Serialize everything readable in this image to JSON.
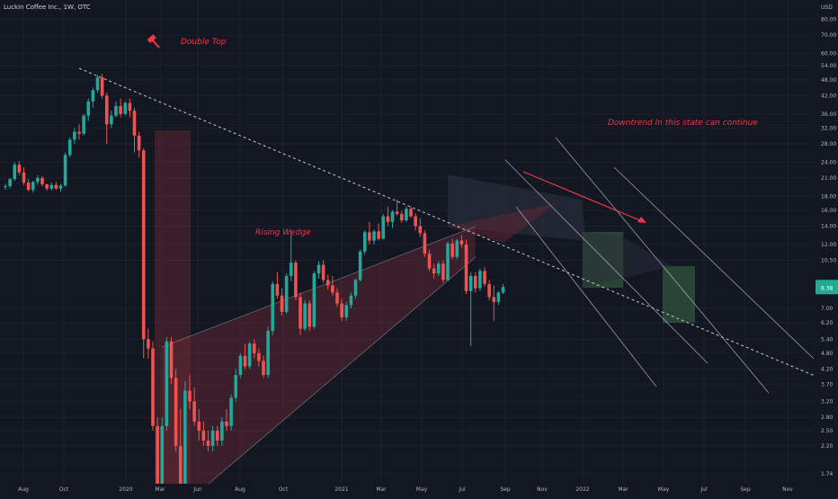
{
  "chart_header": {
    "symbol_title": "Luckin Coffee Inc., 1W, OTC"
  },
  "colors": {
    "background": "#131722",
    "grid": "#1c2030",
    "axis_text": "#b2b5be",
    "up": "#26a69a",
    "down": "#ef5350",
    "annotation": "#f23645",
    "trendline": "#c7c9d1",
    "wedge_fill": "#6b2a35",
    "triangle_fill": "#2a2e39",
    "green_zone": "#3d6b45",
    "last_price_label": "#22ab94"
  },
  "chart_data": {
    "type": "candlestick",
    "xlabel": "",
    "ylabel": "",
    "y_scale": "log",
    "y_unit": "USD",
    "ylim": [
      1.6,
      94
    ],
    "x_ticks": [
      "Aug",
      "Oct",
      "2020",
      "Mar",
      "Jun",
      "Aug",
      "Oct",
      "2021",
      "Mar",
      "May",
      "Jul",
      "Sep",
      "Nov",
      "2022",
      "Mar",
      "May",
      "Jul",
      "Sep",
      "Nov"
    ],
    "y_ticks": [
      "80.00",
      "70.00",
      "60.00",
      "54.00",
      "48.00",
      "42.00",
      "36.00",
      "32.00",
      "28.00",
      "24.00",
      "21.00",
      "18.00",
      "16.00",
      "14.00",
      "12.00",
      "10.50",
      "7.00",
      "6.20",
      "5.40",
      "4.80",
      "4.20",
      "3.70",
      "3.20",
      "2.80",
      "2.50",
      "2.20",
      "1.74"
    ],
    "last_price": "8.38",
    "annotations": [
      {
        "id": "double-top",
        "text": "Double Top"
      },
      {
        "id": "rising-wedge",
        "text": "Rising Wedge"
      },
      {
        "id": "downtrend",
        "text": "Downtrend In this state can continue"
      }
    ],
    "candles": [
      [
        19.5,
        20.0,
        19.0,
        19.6
      ],
      [
        19.6,
        21.0,
        19.2,
        20.8
      ],
      [
        20.8,
        24.0,
        20.5,
        23.5
      ],
      [
        23.5,
        24.2,
        21.5,
        22.0
      ],
      [
        22.0,
        23.0,
        19.8,
        20.2
      ],
      [
        20.2,
        20.8,
        18.8,
        19.0
      ],
      [
        19.0,
        20.5,
        18.6,
        20.3
      ],
      [
        20.3,
        21.5,
        19.8,
        21.0
      ],
      [
        21.0,
        21.4,
        19.6,
        19.9
      ],
      [
        19.9,
        20.0,
        18.9,
        19.2
      ],
      [
        19.2,
        20.2,
        18.9,
        19.8
      ],
      [
        19.8,
        20.3,
        19.0,
        19.2
      ],
      [
        19.2,
        20.0,
        18.7,
        19.7
      ],
      [
        19.7,
        26.0,
        19.5,
        25.5
      ],
      [
        25.5,
        29.5,
        25.0,
        29.0
      ],
      [
        29.0,
        32.0,
        28.0,
        31.0
      ],
      [
        31.0,
        33.0,
        29.0,
        30.5
      ],
      [
        30.5,
        36.0,
        30.0,
        35.5
      ],
      [
        35.5,
        41.0,
        34.0,
        40.0
      ],
      [
        40.0,
        45.0,
        38.0,
        44.0
      ],
      [
        44.0,
        50.0,
        43.0,
        49.0
      ],
      [
        49.0,
        50.5,
        41.0,
        42.0
      ],
      [
        42.0,
        43.0,
        28.0,
        33.0
      ],
      [
        33.0,
        37.0,
        32.0,
        35.5
      ],
      [
        35.5,
        40.0,
        35.0,
        38.5
      ],
      [
        38.5,
        41.0,
        35.0,
        36.0
      ],
      [
        36.0,
        40.0,
        35.5,
        39.5
      ],
      [
        39.5,
        41.0,
        35.0,
        37.0
      ],
      [
        37.0,
        38.0,
        26.0,
        30.0
      ],
      [
        30.0,
        31.0,
        25.0,
        26.5
      ],
      [
        26.5,
        27.0,
        4.6,
        5.4
      ],
      [
        5.4,
        5.9,
        4.6,
        5.0
      ],
      [
        5.0,
        5.3,
        2.5,
        2.6
      ],
      [
        2.6,
        2.8,
        1.4,
        1.5
      ],
      [
        1.5,
        2.8,
        1.4,
        2.6
      ],
      [
        2.6,
        5.5,
        2.5,
        5.3
      ],
      [
        5.3,
        5.5,
        3.7,
        3.9
      ],
      [
        3.9,
        4.2,
        2.1,
        2.2
      ],
      [
        2.2,
        3.0,
        1.4,
        1.6
      ],
      [
        1.6,
        3.8,
        1.5,
        3.5
      ],
      [
        3.5,
        4.0,
        3.0,
        3.2
      ],
      [
        3.2,
        3.6,
        2.6,
        2.7
      ],
      [
        2.7,
        3.0,
        2.3,
        2.5
      ],
      [
        2.5,
        2.7,
        2.2,
        2.3
      ],
      [
        2.3,
        2.5,
        2.1,
        2.2
      ],
      [
        2.2,
        2.6,
        2.1,
        2.5
      ],
      [
        2.5,
        2.6,
        2.2,
        2.3
      ],
      [
        2.3,
        2.8,
        2.2,
        2.7
      ],
      [
        2.7,
        3.0,
        2.5,
        2.6
      ],
      [
        2.6,
        3.4,
        2.5,
        3.3
      ],
      [
        3.3,
        4.2,
        3.2,
        4.0
      ],
      [
        4.0,
        4.8,
        3.9,
        4.7
      ],
      [
        4.7,
        5.2,
        4.2,
        4.3
      ],
      [
        4.3,
        5.3,
        4.2,
        5.2
      ],
      [
        5.2,
        5.4,
        4.6,
        4.8
      ],
      [
        4.8,
        5.0,
        4.3,
        4.5
      ],
      [
        4.5,
        4.7,
        3.9,
        4.0
      ],
      [
        4.0,
        6.0,
        3.9,
        5.8
      ],
      [
        5.8,
        8.8,
        5.6,
        8.6
      ],
      [
        8.6,
        9.5,
        7.6,
        7.8
      ],
      [
        7.8,
        8.3,
        6.6,
        6.8
      ],
      [
        6.8,
        9.4,
        6.7,
        9.2
      ],
      [
        9.2,
        13.5,
        8.8,
        10.3
      ],
      [
        10.3,
        10.5,
        7.5,
        7.7
      ],
      [
        7.7,
        8.0,
        5.6,
        5.9
      ],
      [
        5.9,
        7.5,
        5.8,
        7.3
      ],
      [
        7.3,
        7.5,
        5.8,
        6.0
      ],
      [
        6.0,
        9.6,
        5.9,
        9.4
      ],
      [
        9.4,
        10.4,
        9.0,
        10.1
      ],
      [
        10.1,
        10.5,
        8.7,
        8.9
      ],
      [
        8.9,
        9.3,
        8.2,
        8.5
      ],
      [
        8.5,
        9.2,
        7.8,
        8.0
      ],
      [
        8.0,
        8.3,
        7.1,
        7.3
      ],
      [
        7.3,
        7.6,
        6.3,
        6.5
      ],
      [
        6.5,
        7.4,
        6.3,
        7.2
      ],
      [
        7.2,
        8.0,
        7.0,
        7.8
      ],
      [
        7.8,
        9.0,
        7.6,
        8.9
      ],
      [
        8.9,
        11.5,
        8.8,
        11.3
      ],
      [
        11.3,
        13.5,
        11.0,
        13.3
      ],
      [
        13.3,
        14.5,
        12.0,
        12.4
      ],
      [
        12.4,
        13.6,
        12.0,
        13.4
      ],
      [
        13.4,
        14.3,
        12.4,
        12.6
      ],
      [
        12.6,
        15.5,
        12.5,
        15.2
      ],
      [
        15.2,
        16.5,
        14.0,
        14.5
      ],
      [
        14.5,
        16.0,
        13.8,
        15.8
      ],
      [
        15.8,
        17.5,
        15.3,
        15.5
      ],
      [
        15.5,
        15.9,
        14.4,
        14.7
      ],
      [
        14.7,
        16.5,
        14.5,
        16.2
      ],
      [
        16.2,
        16.5,
        15.0,
        15.2
      ],
      [
        15.2,
        15.6,
        13.5,
        14.0
      ],
      [
        14.0,
        15.0,
        12.8,
        13.2
      ],
      [
        13.2,
        13.5,
        10.8,
        11.1
      ],
      [
        11.1,
        11.5,
        9.6,
        9.8
      ],
      [
        9.8,
        10.2,
        9.0,
        9.4
      ],
      [
        9.4,
        10.4,
        9.2,
        10.2
      ],
      [
        10.2,
        10.5,
        8.7,
        8.9
      ],
      [
        8.9,
        12.3,
        8.8,
        12.1
      ],
      [
        12.1,
        12.6,
        10.6,
        10.8
      ],
      [
        10.8,
        12.6,
        10.6,
        12.4
      ],
      [
        12.4,
        13.0,
        11.7,
        12.0
      ],
      [
        12.0,
        12.5,
        7.9,
        8.1
      ],
      [
        8.1,
        9.5,
        5.1,
        9.2
      ],
      [
        9.2,
        9.5,
        8.0,
        8.3
      ],
      [
        8.3,
        9.8,
        8.1,
        9.6
      ],
      [
        9.6,
        9.9,
        8.4,
        8.6
      ],
      [
        8.6,
        8.9,
        7.5,
        7.7
      ],
      [
        7.7,
        8.5,
        6.3,
        7.4
      ],
      [
        7.4,
        8.1,
        7.2,
        8.0
      ],
      [
        8.0,
        8.6,
        7.9,
        8.38
      ]
    ]
  }
}
